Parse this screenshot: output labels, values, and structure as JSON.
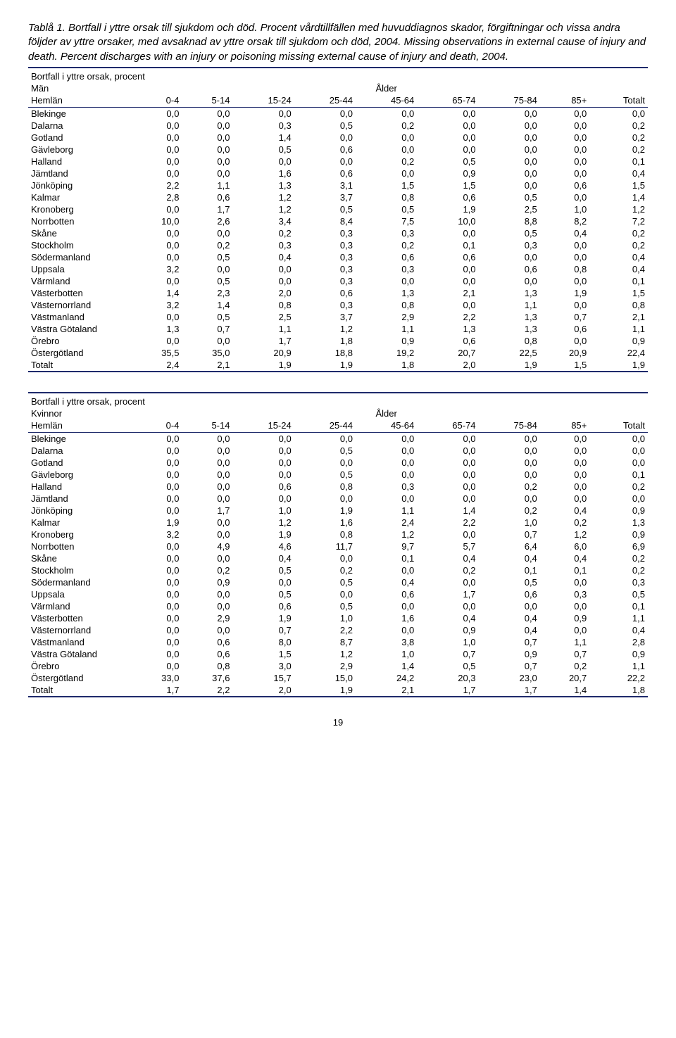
{
  "title": {
    "line1": "Tablå 1. Bortfall i yttre orsak till sjukdom och död. Procent vårdtillfällen med huvuddiagnos skador, förgiftningar och vissa andra följder av yttre orsaker, med avsaknad av yttre orsak till sjukdom och död, 2004. Missing observations in external cause of injury and death. Percent discharges with an injury or poisoning missing external cause of injury and death, 2004."
  },
  "sections": [
    {
      "heading": "Bortfall i yttre orsak, procent",
      "group": "Män",
      "alder": "Ålder",
      "rowLabel": "Hemlän",
      "columns": [
        "0-4",
        "5-14",
        "15-24",
        "25-44",
        "45-64",
        "65-74",
        "75-84",
        "85+",
        "Totalt"
      ],
      "rows": [
        {
          "name": "Blekinge",
          "v": [
            "0,0",
            "0,0",
            "0,0",
            "0,0",
            "0,0",
            "0,0",
            "0,0",
            "0,0",
            "0,0"
          ]
        },
        {
          "name": "Dalarna",
          "v": [
            "0,0",
            "0,0",
            "0,3",
            "0,5",
            "0,2",
            "0,0",
            "0,0",
            "0,0",
            "0,2"
          ]
        },
        {
          "name": "Gotland",
          "v": [
            "0,0",
            "0,0",
            "1,4",
            "0,0",
            "0,0",
            "0,0",
            "0,0",
            "0,0",
            "0,2"
          ]
        },
        {
          "name": "Gävleborg",
          "v": [
            "0,0",
            "0,0",
            "0,5",
            "0,6",
            "0,0",
            "0,0",
            "0,0",
            "0,0",
            "0,2"
          ]
        },
        {
          "name": "Halland",
          "v": [
            "0,0",
            "0,0",
            "0,0",
            "0,0",
            "0,2",
            "0,5",
            "0,0",
            "0,0",
            "0,1"
          ]
        },
        {
          "name": "Jämtland",
          "v": [
            "0,0",
            "0,0",
            "1,6",
            "0,6",
            "0,0",
            "0,9",
            "0,0",
            "0,0",
            "0,4"
          ]
        },
        {
          "name": "Jönköping",
          "v": [
            "2,2",
            "1,1",
            "1,3",
            "3,1",
            "1,5",
            "1,5",
            "0,0",
            "0,6",
            "1,5"
          ]
        },
        {
          "name": "Kalmar",
          "v": [
            "2,8",
            "0,6",
            "1,2",
            "3,7",
            "0,8",
            "0,6",
            "0,5",
            "0,0",
            "1,4"
          ]
        },
        {
          "name": "Kronoberg",
          "v": [
            "0,0",
            "1,7",
            "1,2",
            "0,5",
            "0,5",
            "1,9",
            "2,5",
            "1,0",
            "1,2"
          ]
        },
        {
          "name": "Norrbotten",
          "v": [
            "10,0",
            "2,6",
            "3,4",
            "8,4",
            "7,5",
            "10,0",
            "8,8",
            "8,2",
            "7,2"
          ]
        },
        {
          "name": "Skåne",
          "v": [
            "0,0",
            "0,0",
            "0,2",
            "0,3",
            "0,3",
            "0,0",
            "0,5",
            "0,4",
            "0,2"
          ]
        },
        {
          "name": "Stockholm",
          "v": [
            "0,0",
            "0,2",
            "0,3",
            "0,3",
            "0,2",
            "0,1",
            "0,3",
            "0,0",
            "0,2"
          ]
        },
        {
          "name": "Södermanland",
          "v": [
            "0,0",
            "0,5",
            "0,4",
            "0,3",
            "0,6",
            "0,6",
            "0,0",
            "0,0",
            "0,4"
          ]
        },
        {
          "name": "Uppsala",
          "v": [
            "3,2",
            "0,0",
            "0,0",
            "0,3",
            "0,3",
            "0,0",
            "0,6",
            "0,8",
            "0,4"
          ]
        },
        {
          "name": "Värmland",
          "v": [
            "0,0",
            "0,5",
            "0,0",
            "0,3",
            "0,0",
            "0,0",
            "0,0",
            "0,0",
            "0,1"
          ]
        },
        {
          "name": "Västerbotten",
          "v": [
            "1,4",
            "2,3",
            "2,0",
            "0,6",
            "1,3",
            "2,1",
            "1,3",
            "1,9",
            "1,5"
          ]
        },
        {
          "name": "Västernorrland",
          "v": [
            "3,2",
            "1,4",
            "0,8",
            "0,3",
            "0,8",
            "0,0",
            "1,1",
            "0,0",
            "0,8"
          ]
        },
        {
          "name": "Västmanland",
          "v": [
            "0,0",
            "0,5",
            "2,5",
            "3,7",
            "2,9",
            "2,2",
            "1,3",
            "0,7",
            "2,1"
          ]
        },
        {
          "name": "Västra Götaland",
          "v": [
            "1,3",
            "0,7",
            "1,1",
            "1,2",
            "1,1",
            "1,3",
            "1,3",
            "0,6",
            "1,1"
          ]
        },
        {
          "name": "Örebro",
          "v": [
            "0,0",
            "0,0",
            "1,7",
            "1,8",
            "0,9",
            "0,6",
            "0,8",
            "0,0",
            "0,9"
          ]
        },
        {
          "name": "Östergötland",
          "v": [
            "35,5",
            "35,0",
            "20,9",
            "18,8",
            "19,2",
            "20,7",
            "22,5",
            "20,9",
            "22,4"
          ]
        },
        {
          "name": "Totalt",
          "v": [
            "2,4",
            "2,1",
            "1,9",
            "1,9",
            "1,8",
            "2,0",
            "1,9",
            "1,5",
            "1,9"
          ]
        }
      ]
    },
    {
      "heading": "Bortfall i yttre orsak, procent",
      "group": "Kvinnor",
      "alder": "Ålder",
      "rowLabel": "Hemlän",
      "columns": [
        "0-4",
        "5-14",
        "15-24",
        "25-44",
        "45-64",
        "65-74",
        "75-84",
        "85+",
        "Totalt"
      ],
      "rows": [
        {
          "name": "Blekinge",
          "v": [
            "0,0",
            "0,0",
            "0,0",
            "0,0",
            "0,0",
            "0,0",
            "0,0",
            "0,0",
            "0,0"
          ]
        },
        {
          "name": "Dalarna",
          "v": [
            "0,0",
            "0,0",
            "0,0",
            "0,5",
            "0,0",
            "0,0",
            "0,0",
            "0,0",
            "0,0"
          ]
        },
        {
          "name": "Gotland",
          "v": [
            "0,0",
            "0,0",
            "0,0",
            "0,0",
            "0,0",
            "0,0",
            "0,0",
            "0,0",
            "0,0"
          ]
        },
        {
          "name": "Gävleborg",
          "v": [
            "0,0",
            "0,0",
            "0,0",
            "0,5",
            "0,0",
            "0,0",
            "0,0",
            "0,0",
            "0,1"
          ]
        },
        {
          "name": "Halland",
          "v": [
            "0,0",
            "0,0",
            "0,6",
            "0,8",
            "0,3",
            "0,0",
            "0,2",
            "0,0",
            "0,2"
          ]
        },
        {
          "name": "Jämtland",
          "v": [
            "0,0",
            "0,0",
            "0,0",
            "0,0",
            "0,0",
            "0,0",
            "0,0",
            "0,0",
            "0,0"
          ]
        },
        {
          "name": "Jönköping",
          "v": [
            "0,0",
            "1,7",
            "1,0",
            "1,9",
            "1,1",
            "1,4",
            "0,2",
            "0,4",
            "0,9"
          ]
        },
        {
          "name": "Kalmar",
          "v": [
            "1,9",
            "0,0",
            "1,2",
            "1,6",
            "2,4",
            "2,2",
            "1,0",
            "0,2",
            "1,3"
          ]
        },
        {
          "name": "Kronoberg",
          "v": [
            "3,2",
            "0,0",
            "1,9",
            "0,8",
            "1,2",
            "0,0",
            "0,7",
            "1,2",
            "0,9"
          ]
        },
        {
          "name": "Norrbotten",
          "v": [
            "0,0",
            "4,9",
            "4,6",
            "11,7",
            "9,7",
            "5,7",
            "6,4",
            "6,0",
            "6,9"
          ]
        },
        {
          "name": "Skåne",
          "v": [
            "0,0",
            "0,0",
            "0,4",
            "0,0",
            "0,1",
            "0,4",
            "0,4",
            "0,4",
            "0,2"
          ]
        },
        {
          "name": "Stockholm",
          "v": [
            "0,0",
            "0,2",
            "0,5",
            "0,2",
            "0,0",
            "0,2",
            "0,1",
            "0,1",
            "0,2"
          ]
        },
        {
          "name": "Södermanland",
          "v": [
            "0,0",
            "0,9",
            "0,0",
            "0,5",
            "0,4",
            "0,0",
            "0,5",
            "0,0",
            "0,3"
          ]
        },
        {
          "name": "Uppsala",
          "v": [
            "0,0",
            "0,0",
            "0,5",
            "0,0",
            "0,6",
            "1,7",
            "0,6",
            "0,3",
            "0,5"
          ]
        },
        {
          "name": "Värmland",
          "v": [
            "0,0",
            "0,0",
            "0,6",
            "0,5",
            "0,0",
            "0,0",
            "0,0",
            "0,0",
            "0,1"
          ]
        },
        {
          "name": "Västerbotten",
          "v": [
            "0,0",
            "2,9",
            "1,9",
            "1,0",
            "1,6",
            "0,4",
            "0,4",
            "0,9",
            "1,1"
          ]
        },
        {
          "name": "Västernorrland",
          "v": [
            "0,0",
            "0,0",
            "0,7",
            "2,2",
            "0,0",
            "0,9",
            "0,4",
            "0,0",
            "0,4"
          ]
        },
        {
          "name": "Västmanland",
          "v": [
            "0,0",
            "0,6",
            "8,0",
            "8,7",
            "3,8",
            "1,0",
            "0,7",
            "1,1",
            "2,8"
          ]
        },
        {
          "name": "Västra Götaland",
          "v": [
            "0,0",
            "0,6",
            "1,5",
            "1,2",
            "1,0",
            "0,7",
            "0,9",
            "0,7",
            "0,9"
          ]
        },
        {
          "name": "Örebro",
          "v": [
            "0,0",
            "0,8",
            "3,0",
            "2,9",
            "1,4",
            "0,5",
            "0,7",
            "0,2",
            "1,1"
          ]
        },
        {
          "name": "Östergötland",
          "v": [
            "33,0",
            "37,6",
            "15,7",
            "15,0",
            "24,2",
            "20,3",
            "23,0",
            "20,7",
            "22,2"
          ]
        },
        {
          "name": "Totalt",
          "v": [
            "1,7",
            "2,2",
            "2,0",
            "1,9",
            "2,1",
            "1,7",
            "1,7",
            "1,4",
            "1,8"
          ]
        }
      ]
    }
  ],
  "pageNumber": "19"
}
